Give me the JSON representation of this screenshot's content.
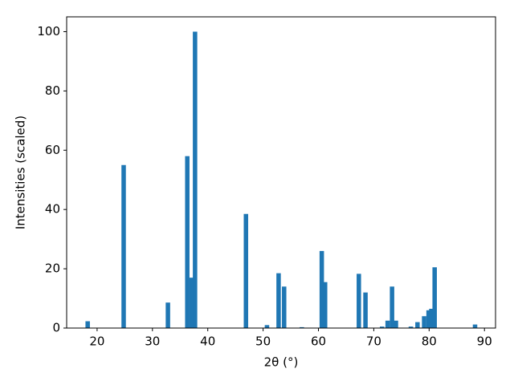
{
  "chart_data": {
    "type": "bar",
    "xlabel": "2θ (°)",
    "ylabel": "Intensities (scaled)",
    "x": [
      18.3,
      24.8,
      32.8,
      36.3,
      37.1,
      37.7,
      46.9,
      50.7,
      52.8,
      53.8,
      57.0,
      60.6,
      61.2,
      67.3,
      68.5,
      71.5,
      72.5,
      73.3,
      74.0,
      76.7,
      77.9,
      79.1,
      79.9,
      80.4,
      81.0,
      88.3
    ],
    "values": [
      2.3,
      55,
      8.6,
      58,
      17,
      100,
      38.5,
      1,
      18.5,
      14,
      0.3,
      26,
      15.5,
      18.3,
      12,
      0.5,
      2.5,
      14,
      2.5,
      0.5,
      2,
      4,
      6,
      6.5,
      20.5,
      1.2
    ],
    "color": "#1f77b4",
    "xlim": [
      14.5,
      92.0
    ],
    "xticks": [
      20,
      30,
      40,
      50,
      60,
      70,
      80,
      90
    ],
    "ylim": [
      0,
      105
    ],
    "yticks": [
      0,
      20,
      40,
      60,
      80,
      100
    ],
    "grid": false
  }
}
